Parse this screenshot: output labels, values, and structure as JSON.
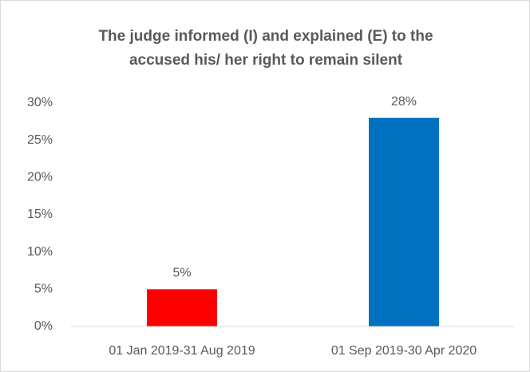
{
  "chart_data": {
    "type": "bar",
    "title": "The judge informed (I) and explained (E) to the accused his/ her right to remain silent",
    "categories": [
      "01 Jan 2019-31 Aug 2019",
      "01 Sep 2019-30 Apr 2020"
    ],
    "values": [
      5,
      28
    ],
    "value_labels": [
      "5%",
      "28%"
    ],
    "colors": [
      "#ff0000",
      "#0070c0"
    ],
    "ylim": [
      0,
      30
    ],
    "yticks": [
      {
        "value": 0,
        "label": "0%"
      },
      {
        "value": 5,
        "label": "5%"
      },
      {
        "value": 10,
        "label": "10%"
      },
      {
        "value": 15,
        "label": "15%"
      },
      {
        "value": 20,
        "label": "20%"
      },
      {
        "value": 25,
        "label": "25%"
      },
      {
        "value": 30,
        "label": "30%"
      }
    ],
    "grid": false
  }
}
